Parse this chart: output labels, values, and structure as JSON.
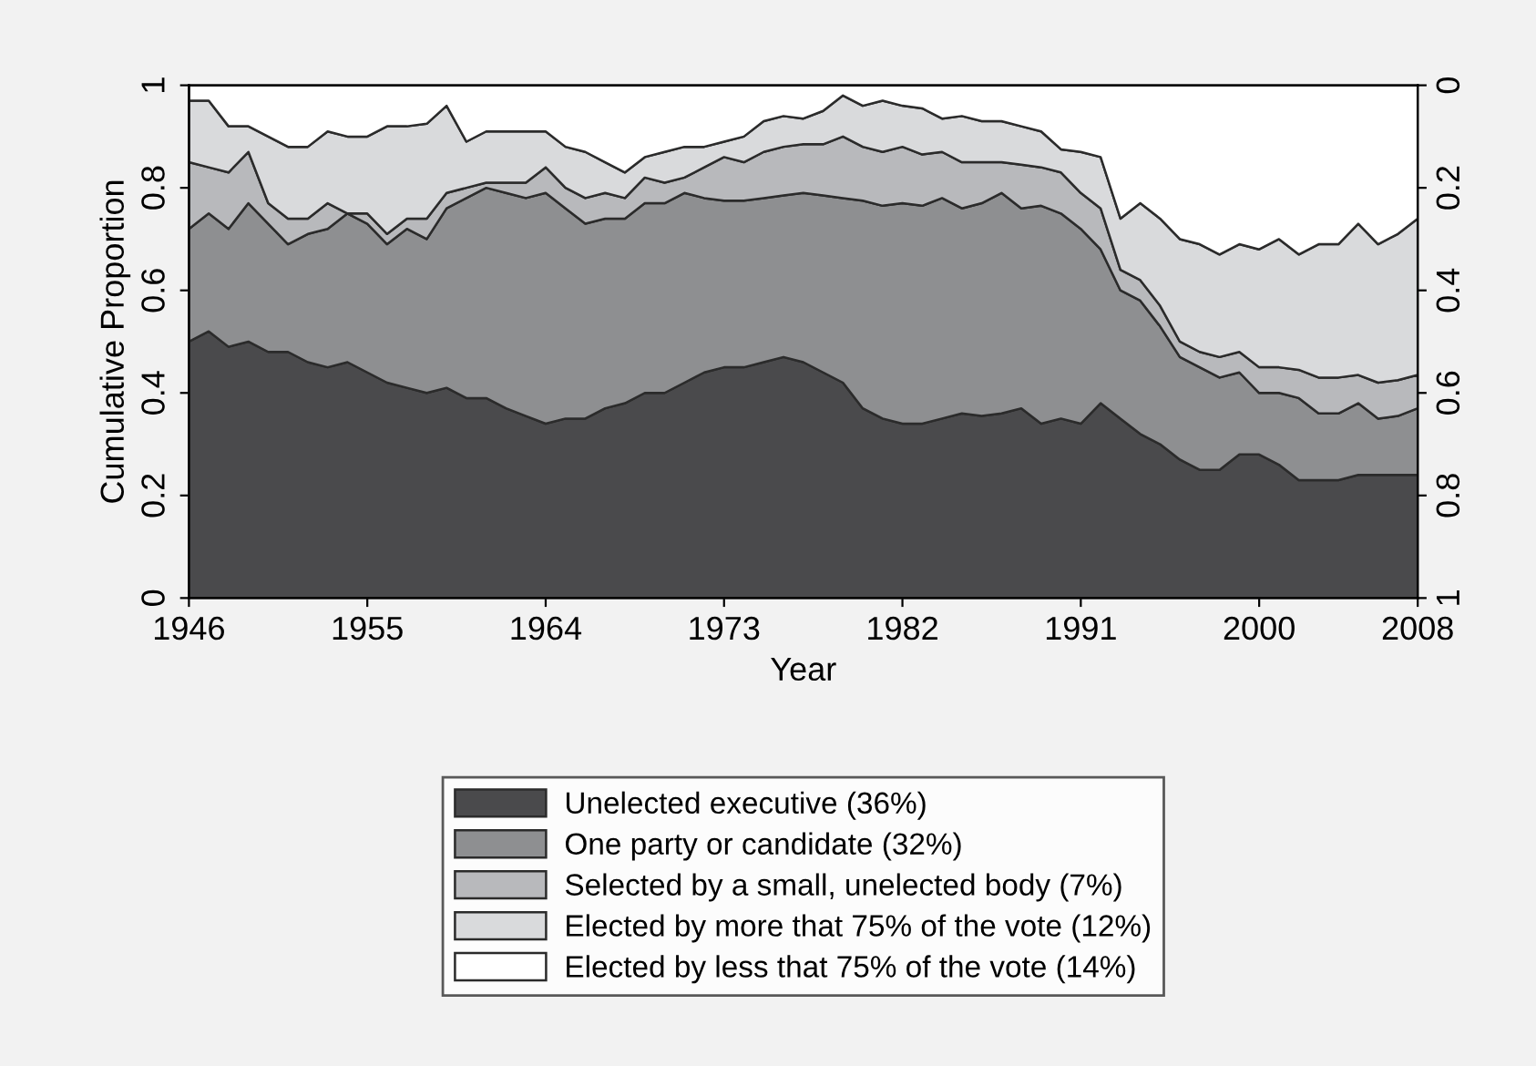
{
  "chart_data": {
    "type": "area",
    "stacked": true,
    "xlabel": "Year",
    "ylabel": "Cumulative Proportion",
    "x": [
      1946,
      1947,
      1948,
      1949,
      1950,
      1951,
      1952,
      1953,
      1954,
      1955,
      1956,
      1957,
      1958,
      1959,
      1960,
      1961,
      1962,
      1963,
      1964,
      1965,
      1966,
      1967,
      1968,
      1969,
      1970,
      1971,
      1972,
      1973,
      1974,
      1975,
      1976,
      1977,
      1978,
      1979,
      1980,
      1981,
      1982,
      1983,
      1984,
      1985,
      1986,
      1987,
      1988,
      1989,
      1990,
      1991,
      1992,
      1993,
      1994,
      1995,
      1996,
      1997,
      1998,
      1999,
      2000,
      2001,
      2002,
      2003,
      2004,
      2005,
      2006,
      2007,
      2008
    ],
    "series": [
      {
        "name": "Unelected executive (36%)",
        "color": "#4a4a4c",
        "values": [
          0.5,
          0.52,
          0.49,
          0.5,
          0.48,
          0.48,
          0.46,
          0.45,
          0.46,
          0.44,
          0.42,
          0.41,
          0.4,
          0.41,
          0.39,
          0.39,
          0.37,
          0.355,
          0.34,
          0.35,
          0.35,
          0.37,
          0.38,
          0.4,
          0.4,
          0.42,
          0.44,
          0.45,
          0.45,
          0.46,
          0.47,
          0.46,
          0.44,
          0.42,
          0.37,
          0.35,
          0.34,
          0.34,
          0.35,
          0.36,
          0.355,
          0.36,
          0.37,
          0.34,
          0.35,
          0.34,
          0.38,
          0.35,
          0.32,
          0.3,
          0.27,
          0.25,
          0.25,
          0.28,
          0.28,
          0.26,
          0.23,
          0.23,
          0.23,
          0.24,
          0.24,
          0.24,
          0.24
        ]
      },
      {
        "name": "One party or candidate (32%)",
        "color": "#8e8f91",
        "values": [
          0.22,
          0.23,
          0.23,
          0.27,
          0.25,
          0.21,
          0.25,
          0.27,
          0.29,
          0.29,
          0.27,
          0.31,
          0.3,
          0.35,
          0.39,
          0.41,
          0.42,
          0.425,
          0.45,
          0.41,
          0.38,
          0.37,
          0.36,
          0.37,
          0.37,
          0.37,
          0.34,
          0.325,
          0.325,
          0.32,
          0.315,
          0.33,
          0.345,
          0.36,
          0.405,
          0.415,
          0.43,
          0.425,
          0.43,
          0.4,
          0.415,
          0.43,
          0.39,
          0.425,
          0.4,
          0.38,
          0.3,
          0.25,
          0.26,
          0.23,
          0.2,
          0.2,
          0.18,
          0.16,
          0.12,
          0.14,
          0.16,
          0.13,
          0.13,
          0.14,
          0.11,
          0.115,
          0.13
        ]
      },
      {
        "name": "Selected by a small, unelected body (7%)",
        "color": "#b8b9bc",
        "values": [
          0.13,
          0.09,
          0.11,
          0.1,
          0.04,
          0.05,
          0.03,
          0.05,
          0.0,
          0.02,
          0.02,
          0.02,
          0.04,
          0.03,
          0.02,
          0.01,
          0.02,
          0.03,
          0.05,
          0.04,
          0.05,
          0.05,
          0.04,
          0.05,
          0.04,
          0.03,
          0.06,
          0.085,
          0.075,
          0.09,
          0.095,
          0.095,
          0.1,
          0.12,
          0.105,
          0.105,
          0.11,
          0.1,
          0.09,
          0.09,
          0.08,
          0.06,
          0.085,
          0.075,
          0.08,
          0.07,
          0.08,
          0.04,
          0.04,
          0.04,
          0.03,
          0.03,
          0.04,
          0.04,
          0.05,
          0.05,
          0.055,
          0.07,
          0.07,
          0.055,
          0.07,
          0.07,
          0.065
        ]
      },
      {
        "name": "Elected by more that 75% of the vote (12%)",
        "color": "#d9dadc",
        "values": [
          0.12,
          0.13,
          0.09,
          0.05,
          0.13,
          0.14,
          0.14,
          0.14,
          0.15,
          0.15,
          0.21,
          0.18,
          0.185,
          0.17,
          0.09,
          0.1,
          0.1,
          0.1,
          0.07,
          0.08,
          0.09,
          0.06,
          0.05,
          0.04,
          0.06,
          0.06,
          0.04,
          0.03,
          0.05,
          0.06,
          0.06,
          0.05,
          0.065,
          0.08,
          0.08,
          0.1,
          0.08,
          0.09,
          0.065,
          0.09,
          0.08,
          0.08,
          0.075,
          0.07,
          0.045,
          0.08,
          0.1,
          0.1,
          0.15,
          0.17,
          0.2,
          0.21,
          0.2,
          0.21,
          0.23,
          0.25,
          0.225,
          0.26,
          0.26,
          0.295,
          0.27,
          0.285,
          0.305
        ]
      },
      {
        "name": "Elected by less that 75% of the vote (14%)",
        "color": "#ffffff",
        "values": [
          0.03,
          0.03,
          0.08,
          0.08,
          0.1,
          0.12,
          0.12,
          0.09,
          0.1,
          0.1,
          0.08,
          0.08,
          0.075,
          0.04,
          0.11,
          0.09,
          0.09,
          0.09,
          0.09,
          0.12,
          0.13,
          0.15,
          0.17,
          0.14,
          0.13,
          0.12,
          0.12,
          0.11,
          0.1,
          0.07,
          0.06,
          0.065,
          0.05,
          0.02,
          0.04,
          0.03,
          0.04,
          0.045,
          0.065,
          0.06,
          0.07,
          0.07,
          0.08,
          0.09,
          0.125,
          0.13,
          0.14,
          0.26,
          0.23,
          0.26,
          0.3,
          0.31,
          0.33,
          0.31,
          0.32,
          0.3,
          0.33,
          0.31,
          0.31,
          0.27,
          0.31,
          0.29,
          0.26
        ]
      }
    ],
    "xlim": [
      1946,
      2008
    ],
    "xticks": [
      1946,
      1955,
      1964,
      1973,
      1982,
      1991,
      2000,
      2008
    ],
    "ylim": [
      0,
      1
    ],
    "yticks": [
      0,
      0.2,
      0.4,
      0.6,
      0.8,
      1
    ],
    "y2lim": [
      1,
      0
    ],
    "y2ticks": [
      0,
      0.2,
      0.4,
      0.6,
      0.8,
      1
    ],
    "grid": false,
    "legend": "bottom"
  }
}
